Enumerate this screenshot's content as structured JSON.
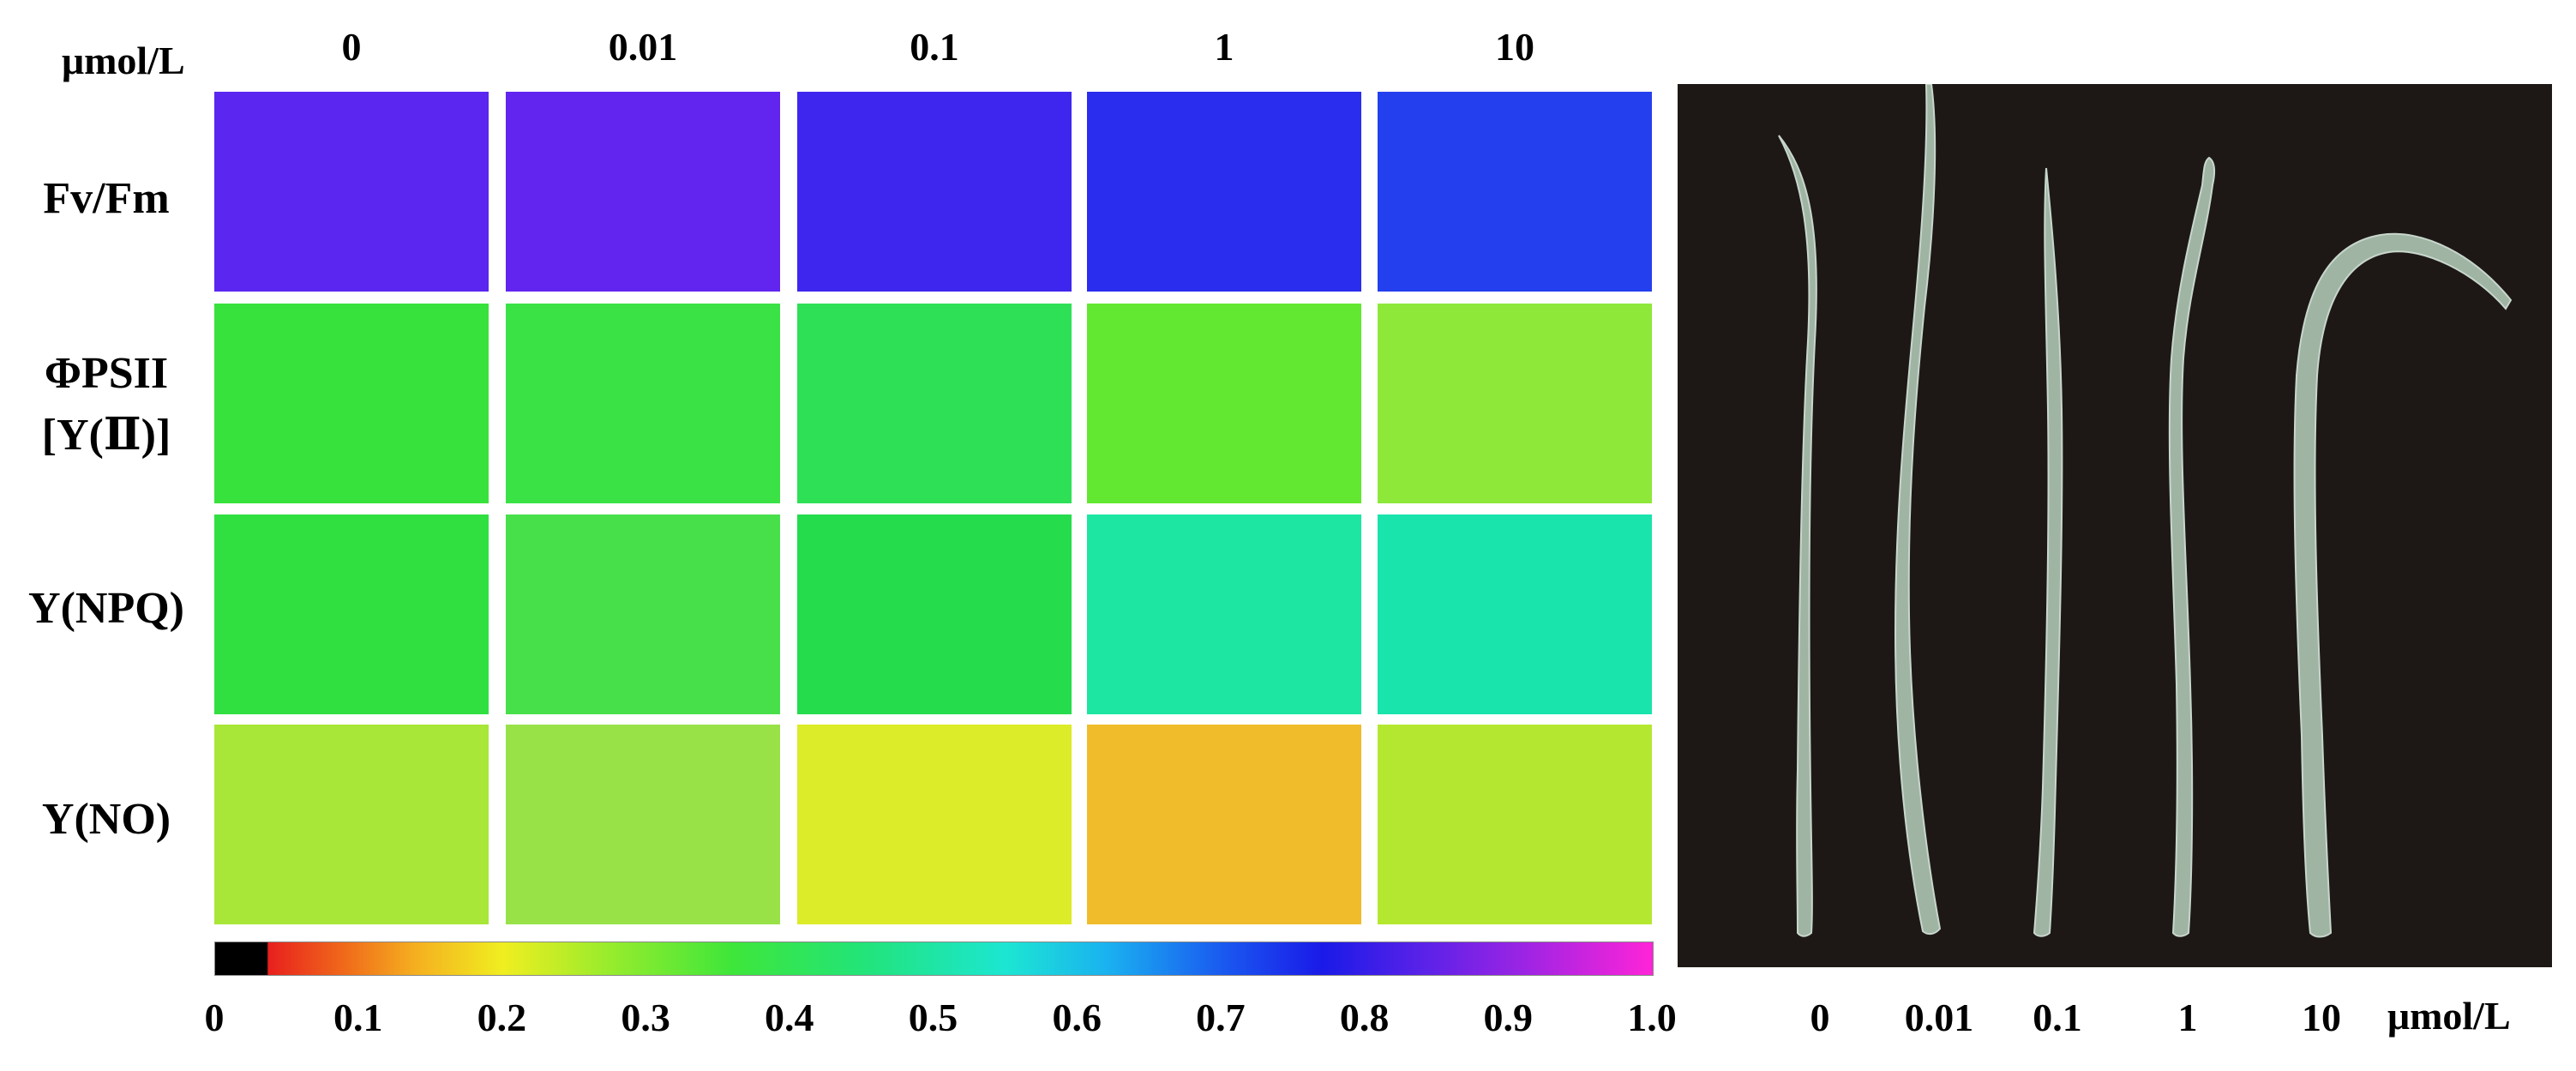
{
  "top_unit": "μmol/L",
  "concentrations": [
    "0",
    "0.01",
    "0.1",
    "1",
    "10"
  ],
  "parameters": [
    {
      "lines": [
        "Fv/Fm",
        ""
      ]
    },
    {
      "lines": [
        "ΦPSII",
        "[Y(Ⅱ)]"
      ]
    },
    {
      "lines": [
        "Y(NPQ)",
        ""
      ]
    },
    {
      "lines": [
        "Y(NO)",
        ""
      ]
    }
  ],
  "colorbar": {
    "ticks": [
      "0",
      "0.1",
      "0.2",
      "0.3",
      "0.4",
      "0.5",
      "0.6",
      "0.7",
      "0.8",
      "0.9",
      "1.0"
    ],
    "range": [
      0,
      1.0
    ]
  },
  "tile_colors": [
    [
      "#5a26f0",
      "#6224ef",
      "#3f26ee",
      "#2a2cee",
      "#2440ee"
    ],
    [
      "#38e23c",
      "#3ae246",
      "#2ee056",
      "#62e830",
      "#8ee83a"
    ],
    [
      "#30e040",
      "#48e04a",
      "#24dc4c",
      "#1ce6a2",
      "#18e4ac"
    ],
    [
      "#a8e638",
      "#98e248",
      "#dcec28",
      "#f0bc2c",
      "#b4e830"
    ]
  ],
  "photo": {
    "background": "#1d1816",
    "leaf_color": "#9fb4a3",
    "labels": [
      "0",
      "0.01",
      "0.1",
      "1",
      "10"
    ],
    "unit": "μmol/L"
  }
}
